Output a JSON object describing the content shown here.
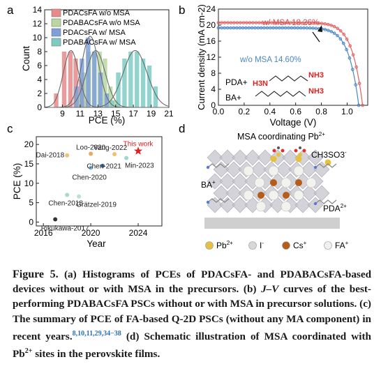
{
  "panel_letters": [
    "a",
    "b",
    "c",
    "d"
  ],
  "chart_data": [
    {
      "panel": "a",
      "type": "bar",
      "xlabel": "PCE (%)",
      "ylabel": "Count",
      "xticks": [
        "9",
        "11",
        "13",
        "15",
        "17",
        "19",
        "21"
      ],
      "yticks": [
        "0",
        "2",
        "4",
        "6",
        "8",
        "10",
        "12",
        "14"
      ],
      "xlim": [
        7,
        21
      ],
      "ylim": [
        0,
        14
      ],
      "series": [
        {
          "name": "PDACsFA w/o MSA",
          "color": "#e88a8a",
          "bins": [
            [
              8.3,
              2
            ],
            [
              9.2,
              8
            ],
            [
              9.9,
              8
            ],
            [
              10.5,
              7
            ],
            [
              11.1,
              4
            ],
            [
              11.7,
              1
            ]
          ]
        },
        {
          "name": "PDABACsFA w/o MSA",
          "color": "#b9d8a0",
          "bins": [
            [
              10.8,
              2
            ],
            [
              11.4,
              5
            ],
            [
              12.0,
              8
            ],
            [
              12.6,
              8
            ],
            [
              13.2,
              8
            ],
            [
              13.8,
              7
            ],
            [
              14.4,
              3
            ],
            [
              15.0,
              1
            ]
          ]
        },
        {
          "name": "PDACsFA w/ MSA",
          "color": "#7f9fd8",
          "bins": [
            [
              10.6,
              3
            ],
            [
              11.2,
              7
            ],
            [
              11.9,
              10
            ],
            [
              12.6,
              8
            ],
            [
              13.3,
              5
            ],
            [
              14.0,
              2
            ]
          ]
        },
        {
          "name": "PDABACsFA w/ MSA",
          "color": "#7ecbc4",
          "bins": [
            [
              14.6,
              1
            ],
            [
              15.3,
              5
            ],
            [
              16.0,
              7
            ],
            [
              16.7,
              8
            ],
            [
              17.4,
              8
            ],
            [
              18.1,
              7
            ],
            [
              18.8,
              6
            ],
            [
              19.5,
              3
            ]
          ]
        }
      ]
    },
    {
      "panel": "b",
      "type": "line",
      "xlabel": "Voltage (V)",
      "ylabel": "Current density (mA cm-2)",
      "xticks": [
        "0.0",
        "0.2",
        "0.4",
        "0.6",
        "0.8",
        "1.0"
      ],
      "yticks": [
        "0",
        "4",
        "8",
        "12",
        "16",
        "20",
        "24"
      ],
      "xlim": [
        0,
        1.16
      ],
      "ylim": [
        0,
        24
      ],
      "series": [
        {
          "name": "w/ MSA 18.26%",
          "color": "#e06060",
          "jsc": 20.6,
          "voc": 1.12
        },
        {
          "name": "w/o MSA 14.60%",
          "color": "#4a86c5",
          "jsc": 19.3,
          "voc": 1.09
        }
      ],
      "annotations": [
        "PDA+",
        "BA+"
      ],
      "formula_labels": [
        "H3N",
        "NH3"
      ]
    },
    {
      "panel": "c",
      "type": "scatter",
      "xlabel": "Year",
      "ylabel": "PCE (%)",
      "xticks": [
        "2016",
        "2020",
        "2024"
      ],
      "yticks": [
        "0",
        "5",
        "10",
        "15",
        "20"
      ],
      "xlim": [
        2015.4,
        2026
      ],
      "ylim": [
        -1,
        22
      ],
      "points": [
        {
          "label": "Dai-2018",
          "x": 2018,
          "y": 17.2,
          "color": "#f0c07a"
        },
        {
          "label": "Loo-2020",
          "x": 2020,
          "y": 17.6,
          "color": "#e8a860"
        },
        {
          "label": "Yang-2022",
          "x": 2022,
          "y": 17.5,
          "color": "#f0c070"
        },
        {
          "label": "Chen-2020",
          "x": 2020,
          "y": 14.0,
          "color": "#7fb8d8"
        },
        {
          "label": "Chen-2021",
          "x": 2021,
          "y": 14.5,
          "color": "#3f6fa0"
        },
        {
          "label": "Min-2023",
          "x": 2023,
          "y": 16.5,
          "color": "#9fd8d0"
        },
        {
          "label": "Chen-2018",
          "x": 2018,
          "y": 7.0,
          "color": "#a8d8d0"
        },
        {
          "label": "Grätzel-2019",
          "x": 2019,
          "y": 6.6,
          "color": "#b8e0d8"
        },
        {
          "label": "Rikukawa-2017",
          "x": 2017,
          "y": 0.7,
          "color": "#333333"
        },
        {
          "label": "This work",
          "x": 2024,
          "y": 18.3,
          "color": "#e02020",
          "marker": "star"
        }
      ]
    }
  ],
  "panel_d": {
    "title": "MSA coordinating Pb",
    "title_sup": "2+",
    "labels": {
      "ch3so3": "CH3SO3",
      "ba": "BA",
      "pda": "PDA"
    },
    "legend": [
      {
        "label": "Pb",
        "sup": "2+",
        "color": "#e8c040"
      },
      {
        "label": "I",
        "sup": "-",
        "color": "#d8d8d8"
      },
      {
        "label": "Cs",
        "sup": "+",
        "color": "#b85c1a"
      },
      {
        "label": "FA",
        "sup": "+",
        "color": "#f0f0f0"
      }
    ]
  },
  "caption": {
    "figure_label": "Figure 5.",
    "part1": "(a) Histograms of PCEs of PDACsFA- and PDABACsFA-based devices without or with MSA in the precursors. (b)",
    "jv": "J–V",
    "part2": "curves of the best-performing PDABACsFA PSCs without or with MSA in precursor solutions. (c) The summary of PCE of FA-based Q-2D PSCs (without any MA component) in recent years.",
    "refs": "8,10,11,29,34−38",
    "part3": "(d) Schematic illustration of MSA coordinated with Pb",
    "part3_sup": "2+",
    "part4": "sites in the perovskite films."
  }
}
